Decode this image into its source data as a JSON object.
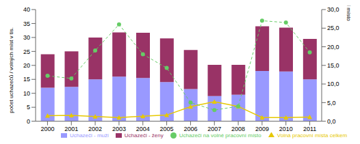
{
  "chart_data": {
    "type": "bar",
    "stacked": true,
    "grid": false,
    "legend": "bottom",
    "categories": [
      "2000",
      "2001",
      "2002",
      "2003",
      "2004",
      "2005",
      "2006",
      "2007",
      "2008",
      "2009",
      "2010",
      "2011"
    ],
    "y_label": "počet uchazečů / volných míst v tis.",
    "y2_label": "uchazeči na volné pracovní místo",
    "ylim": [
      0,
      40
    ],
    "yticks": [
      0,
      5,
      10,
      15,
      20,
      25,
      30,
      35,
      40
    ],
    "y2lim": [
      0,
      30
    ],
    "y2ticks": [
      {
        "value": 0,
        "label": "0,0"
      },
      {
        "value": 5,
        "label": "5,0"
      },
      {
        "value": 10,
        "label": "10,0"
      },
      {
        "value": 15,
        "label": "15,0"
      },
      {
        "value": 20,
        "label": "20,0"
      },
      {
        "value": 25,
        "label": "25,0"
      },
      {
        "value": 30,
        "label": "30,0"
      }
    ],
    "series": [
      {
        "name": "Uchazeči - muži",
        "type": "bar",
        "color": "#9999ff",
        "values": [
          12,
          12.3,
          15,
          16,
          15.5,
          14,
          11.5,
          9,
          9.5,
          18,
          17.8,
          15
        ]
      },
      {
        "name": "Uchazeči - ženy",
        "type": "bar",
        "color": "#993366",
        "values": [
          12,
          12.7,
          15,
          15.8,
          16.2,
          15.7,
          14,
          11.2,
          10.7,
          16,
          15.7,
          14.5
        ]
      },
      {
        "name": "Volná pracovní místa celkem",
        "type": "line",
        "color": "#e6c800",
        "marker": "triangle",
        "line_style": "solid",
        "values": [
          2.0,
          2.1,
          1.7,
          1.3,
          1.8,
          2.2,
          5.2,
          7.0,
          5.3,
          1.3,
          1.3,
          1.5
        ]
      },
      {
        "name": "Uchazeči na volné pracovní místo",
        "type": "line",
        "axis": "y2",
        "color": "#66cc66",
        "marker": "circle",
        "line_style": "dashed",
        "values": [
          12.2,
          11.5,
          19,
          26,
          18,
          14.3,
          5,
          3,
          4,
          27,
          26.5,
          18.5
        ]
      }
    ]
  }
}
